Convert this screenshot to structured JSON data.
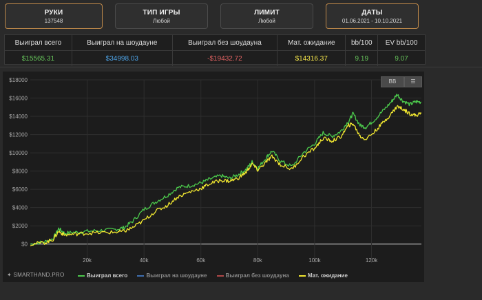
{
  "filters": [
    {
      "label": "РУКИ",
      "value": "137548",
      "active": true
    },
    {
      "label": "ТИП ИГРЫ",
      "value": "Любой",
      "active": false
    },
    {
      "label": "ЛИМИТ",
      "value": "Любой",
      "active": false
    },
    {
      "label": "ДАТЫ",
      "value": "01.06.2021 - 10.10.2021",
      "active": true
    }
  ],
  "stats": {
    "headers": [
      "Выиграл всего",
      "Выиграл на шоудауне",
      "Выиграл без шоудауна",
      "Мат. ожидание",
      "bb/100",
      "EV bb/100"
    ],
    "values": [
      "$15565.31",
      "$34998.03",
      "-$19432.72",
      "$14316.37",
      "9.19",
      "9.07"
    ],
    "colors": [
      "#66c35a",
      "#4da3e6",
      "#e06262",
      "#f2e34a",
      "#66c35a",
      "#66c35a"
    ]
  },
  "controls": {
    "bb_label": "BB",
    "menu_icon": "menu-icon"
  },
  "brand": "SMARTHAND.PRO",
  "chart_data": {
    "type": "line",
    "x_unit": "hands",
    "xlim": [
      0,
      137548
    ],
    "ylim": [
      -1000,
      18000
    ],
    "y_ticks": [
      0,
      2000,
      4000,
      6000,
      8000,
      10000,
      12000,
      14000,
      16000,
      18000
    ],
    "y_tick_labels": [
      "$0",
      "$2000",
      "$4000",
      "$6000",
      "$8000",
      "$10000",
      "$12000",
      "$14000",
      "$16000",
      "$18000"
    ],
    "x_ticks": [
      20000,
      40000,
      60000,
      80000,
      100000,
      120000
    ],
    "x_tick_labels": [
      "20k",
      "40k",
      "60k",
      "80k",
      "100k",
      "120k"
    ],
    "grid": true,
    "legend_position": "bottom",
    "series": [
      {
        "name": "Выиграл всего",
        "color": "#4cc94c",
        "visible": true,
        "points": [
          [
            0,
            0
          ],
          [
            5000,
            250
          ],
          [
            8000,
            600
          ],
          [
            10000,
            1700
          ],
          [
            12000,
            1200
          ],
          [
            16000,
            1300
          ],
          [
            20000,
            1400
          ],
          [
            25000,
            1500
          ],
          [
            30000,
            1600
          ],
          [
            33000,
            1800
          ],
          [
            36000,
            2500
          ],
          [
            40000,
            3800
          ],
          [
            44000,
            4600
          ],
          [
            48000,
            5300
          ],
          [
            52000,
            6200
          ],
          [
            56000,
            6400
          ],
          [
            60000,
            6700
          ],
          [
            63000,
            7100
          ],
          [
            67000,
            7500
          ],
          [
            70000,
            7200
          ],
          [
            73000,
            7600
          ],
          [
            76000,
            8200
          ],
          [
            78000,
            9000
          ],
          [
            80000,
            8300
          ],
          [
            83000,
            9500
          ],
          [
            85000,
            10200
          ],
          [
            88000,
            9100
          ],
          [
            92000,
            8500
          ],
          [
            96000,
            10000
          ],
          [
            100000,
            11000
          ],
          [
            103000,
            12200
          ],
          [
            106000,
            11800
          ],
          [
            109000,
            12300
          ],
          [
            112000,
            13500
          ],
          [
            113500,
            14300
          ],
          [
            116000,
            13000
          ],
          [
            118000,
            12800
          ],
          [
            121000,
            13600
          ],
          [
            124000,
            14600
          ],
          [
            127000,
            15600
          ],
          [
            129000,
            16400
          ],
          [
            131000,
            15700
          ],
          [
            133500,
            15300
          ],
          [
            135500,
            15600
          ],
          [
            137500,
            15565
          ]
        ]
      },
      {
        "name": "Выиграл на шоудауне",
        "color": "#3f6fb0",
        "visible": false
      },
      {
        "name": "Выиграл без шоудауна",
        "color": "#b04848",
        "visible": false
      },
      {
        "name": "Мат. ожидание",
        "color": "#f2e830",
        "visible": true,
        "points": [
          [
            0,
            0
          ],
          [
            5000,
            150
          ],
          [
            8000,
            500
          ],
          [
            10000,
            1400
          ],
          [
            12000,
            1000
          ],
          [
            16000,
            1100
          ],
          [
            20000,
            1200
          ],
          [
            25000,
            1250
          ],
          [
            30000,
            1300
          ],
          [
            33000,
            1400
          ],
          [
            36000,
            1800
          ],
          [
            40000,
            2600
          ],
          [
            44000,
            3600
          ],
          [
            48000,
            4200
          ],
          [
            52000,
            5200
          ],
          [
            56000,
            5700
          ],
          [
            60000,
            6100
          ],
          [
            63000,
            6600
          ],
          [
            67000,
            7000
          ],
          [
            70000,
            6900
          ],
          [
            73000,
            7200
          ],
          [
            76000,
            7900
          ],
          [
            78000,
            8800
          ],
          [
            80000,
            8100
          ],
          [
            83000,
            9000
          ],
          [
            85000,
            9600
          ],
          [
            88000,
            8700
          ],
          [
            92000,
            8200
          ],
          [
            96000,
            9600
          ],
          [
            100000,
            10500
          ],
          [
            103000,
            11600
          ],
          [
            106000,
            11300
          ],
          [
            109000,
            11700
          ],
          [
            112000,
            13000
          ],
          [
            113500,
            13200
          ],
          [
            116000,
            11800
          ],
          [
            118000,
            11500
          ],
          [
            121000,
            12300
          ],
          [
            124000,
            13300
          ],
          [
            127000,
            14300
          ],
          [
            129000,
            15100
          ],
          [
            131000,
            14800
          ],
          [
            133500,
            14300
          ],
          [
            135500,
            14100
          ],
          [
            137500,
            14316
          ]
        ]
      }
    ]
  }
}
